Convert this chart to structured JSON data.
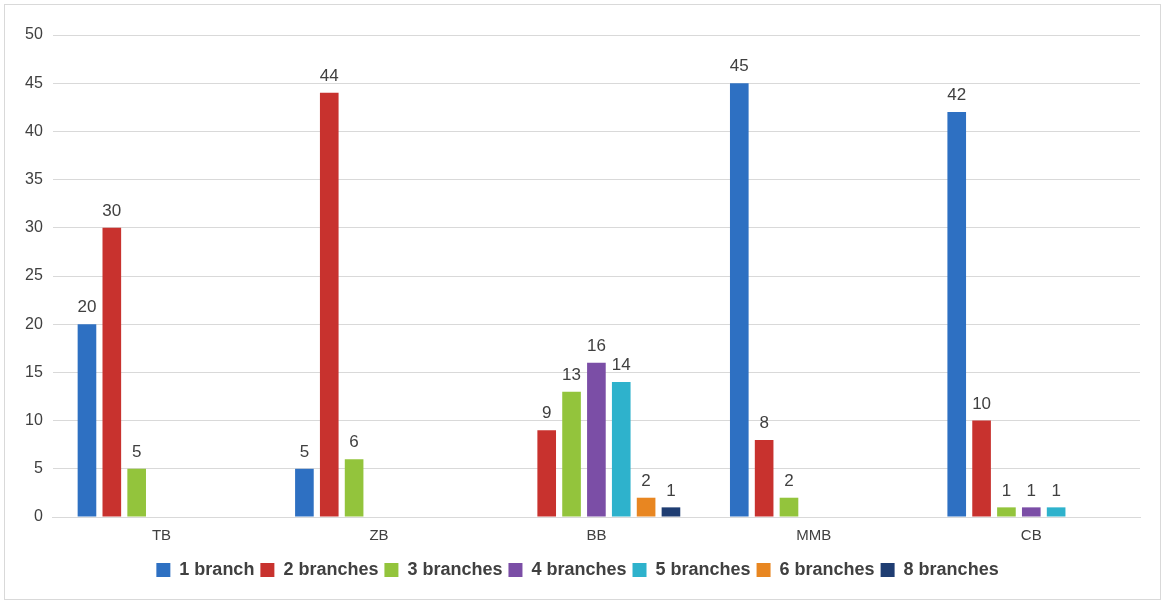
{
  "chart_data": {
    "type": "bar",
    "categories": [
      "TB",
      "ZB",
      "BB",
      "MMB",
      "CB"
    ],
    "series": [
      {
        "name": "1 branch",
        "color": "#2e70c2",
        "values": [
          20,
          5,
          null,
          45,
          42
        ]
      },
      {
        "name": "2 branches",
        "color": "#c8322e",
        "values": [
          30,
          44,
          9,
          8,
          10
        ]
      },
      {
        "name": "3 branches",
        "color": "#93c43c",
        "values": [
          5,
          6,
          13,
          2,
          1
        ]
      },
      {
        "name": "4 branches",
        "color": "#7b4ea6",
        "values": [
          null,
          null,
          16,
          null,
          1
        ]
      },
      {
        "name": "5 branches",
        "color": "#2eb2cc",
        "values": [
          null,
          null,
          14,
          null,
          1
        ]
      },
      {
        "name": "6 branches",
        "color": "#e88621",
        "values": [
          null,
          null,
          2,
          null,
          null
        ]
      },
      {
        "name": "8 branches",
        "color": "#1f3d72",
        "values": [
          null,
          null,
          1,
          null,
          null
        ]
      }
    ],
    "ylim": [
      0,
      50
    ],
    "yticks": [
      0,
      5,
      10,
      15,
      20,
      25,
      30,
      35,
      40,
      45,
      50
    ],
    "grid": "y",
    "legend": "bottom",
    "data_labels": true
  }
}
